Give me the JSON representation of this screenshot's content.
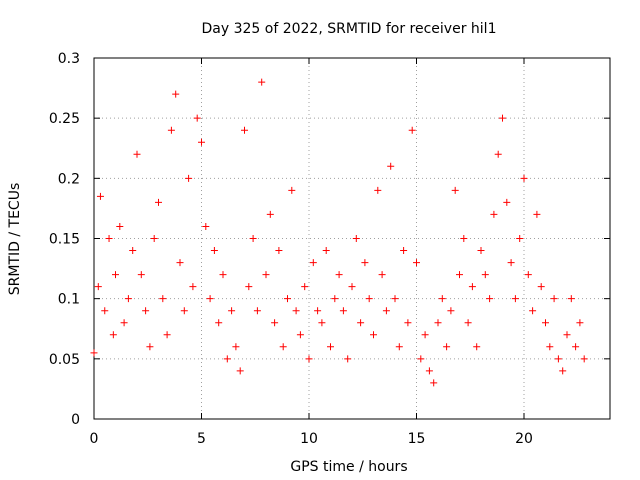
{
  "chart_data": {
    "type": "scatter",
    "title": "Day 325 of 2022, SRMTID for receiver hil1",
    "xlabel": "GPS time / hours",
    "ylabel": "SRMTID / TECUs",
    "xlim": [
      0,
      24
    ],
    "ylim": [
      0,
      0.3
    ],
    "x_ticks": [
      "0",
      "5",
      "10",
      "15",
      "20"
    ],
    "y_ticks": [
      "0",
      "0.05",
      "0.1",
      "0.15",
      "0.2",
      "0.25",
      "0.3"
    ],
    "grid": true,
    "marker": "+",
    "color": "#ff0000",
    "legend": "none",
    "series": [
      {
        "values": [
          [
            0.0,
            0.055
          ],
          [
            0.2,
            0.11
          ],
          [
            0.3,
            0.185
          ],
          [
            0.5,
            0.09
          ],
          [
            0.7,
            0.15
          ],
          [
            0.9,
            0.07
          ],
          [
            1.0,
            0.12
          ],
          [
            1.2,
            0.16
          ],
          [
            1.4,
            0.08
          ],
          [
            1.6,
            0.1
          ],
          [
            1.8,
            0.14
          ],
          [
            2.0,
            0.22
          ],
          [
            2.2,
            0.12
          ],
          [
            2.4,
            0.09
          ],
          [
            2.6,
            0.06
          ],
          [
            2.8,
            0.15
          ],
          [
            3.0,
            0.18
          ],
          [
            3.2,
            0.1
          ],
          [
            3.4,
            0.07
          ],
          [
            3.6,
            0.24
          ],
          [
            3.8,
            0.27
          ],
          [
            4.0,
            0.13
          ],
          [
            4.2,
            0.09
          ],
          [
            4.4,
            0.2
          ],
          [
            4.6,
            0.11
          ],
          [
            4.8,
            0.25
          ],
          [
            5.0,
            0.23
          ],
          [
            5.2,
            0.16
          ],
          [
            5.4,
            0.1
          ],
          [
            5.6,
            0.14
          ],
          [
            5.8,
            0.08
          ],
          [
            6.0,
            0.12
          ],
          [
            6.2,
            0.05
          ],
          [
            6.4,
            0.09
          ],
          [
            6.6,
            0.06
          ],
          [
            6.8,
            0.04
          ],
          [
            7.0,
            0.24
          ],
          [
            7.2,
            0.11
          ],
          [
            7.4,
            0.15
          ],
          [
            7.6,
            0.09
          ],
          [
            7.8,
            0.28
          ],
          [
            8.0,
            0.12
          ],
          [
            8.2,
            0.17
          ],
          [
            8.4,
            0.08
          ],
          [
            8.6,
            0.14
          ],
          [
            8.8,
            0.06
          ],
          [
            9.0,
            0.1
          ],
          [
            9.2,
            0.19
          ],
          [
            9.4,
            0.09
          ],
          [
            9.6,
            0.07
          ],
          [
            9.8,
            0.11
          ],
          [
            10.0,
            0.05
          ],
          [
            10.2,
            0.13
          ],
          [
            10.4,
            0.09
          ],
          [
            10.6,
            0.08
          ],
          [
            10.8,
            0.14
          ],
          [
            11.0,
            0.06
          ],
          [
            11.2,
            0.1
          ],
          [
            11.4,
            0.12
          ],
          [
            11.6,
            0.09
          ],
          [
            11.8,
            0.05
          ],
          [
            12.0,
            0.11
          ],
          [
            12.2,
            0.15
          ],
          [
            12.4,
            0.08
          ],
          [
            12.6,
            0.13
          ],
          [
            12.8,
            0.1
          ],
          [
            13.0,
            0.07
          ],
          [
            13.2,
            0.19
          ],
          [
            13.4,
            0.12
          ],
          [
            13.6,
            0.09
          ],
          [
            13.8,
            0.21
          ],
          [
            14.0,
            0.1
          ],
          [
            14.2,
            0.06
          ],
          [
            14.4,
            0.14
          ],
          [
            14.6,
            0.08
          ],
          [
            14.8,
            0.24
          ],
          [
            15.0,
            0.13
          ],
          [
            15.2,
            0.05
          ],
          [
            15.4,
            0.07
          ],
          [
            15.6,
            0.04
          ],
          [
            15.8,
            0.03
          ],
          [
            16.0,
            0.08
          ],
          [
            16.2,
            0.1
          ],
          [
            16.4,
            0.06
          ],
          [
            16.6,
            0.09
          ],
          [
            16.8,
            0.19
          ],
          [
            17.0,
            0.12
          ],
          [
            17.2,
            0.15
          ],
          [
            17.4,
            0.08
          ],
          [
            17.6,
            0.11
          ],
          [
            17.8,
            0.06
          ],
          [
            18.0,
            0.14
          ],
          [
            18.2,
            0.12
          ],
          [
            18.4,
            0.1
          ],
          [
            18.6,
            0.17
          ],
          [
            18.8,
            0.22
          ],
          [
            19.0,
            0.25
          ],
          [
            19.2,
            0.18
          ],
          [
            19.4,
            0.13
          ],
          [
            19.6,
            0.1
          ],
          [
            19.8,
            0.15
          ],
          [
            20.0,
            0.2
          ],
          [
            20.2,
            0.12
          ],
          [
            20.4,
            0.09
          ],
          [
            20.6,
            0.17
          ],
          [
            20.8,
            0.11
          ],
          [
            21.0,
            0.08
          ],
          [
            21.2,
            0.06
          ],
          [
            21.4,
            0.1
          ],
          [
            21.6,
            0.05
          ],
          [
            21.8,
            0.04
          ],
          [
            22.0,
            0.07
          ],
          [
            22.2,
            0.1
          ],
          [
            22.4,
            0.06
          ],
          [
            22.6,
            0.08
          ],
          [
            22.8,
            0.05
          ]
        ]
      }
    ]
  }
}
